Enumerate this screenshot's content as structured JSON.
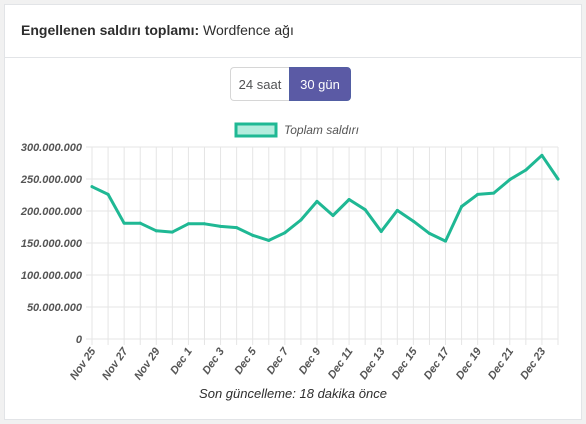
{
  "header": {
    "title_bold": "Engellenen saldırı toplamı:",
    "title_rest": "Wordfence ağı"
  },
  "toggle": {
    "option_24h": "24 saat",
    "option_30d": "30 gün",
    "selected": "30 gün"
  },
  "footer": {
    "last_updated": "Son güncelleme: 18 dakika önce"
  },
  "colors": {
    "line": "#1fb894",
    "legend_fill": "#b3ecdd",
    "accent_button": "#5b5aa5",
    "grid": "#e5e5e5"
  },
  "chart_data": {
    "type": "line",
    "x": [
      "Nov 25",
      "Nov 26",
      "Nov 27",
      "Nov 28",
      "Nov 29",
      "Nov 30",
      "Dec 1",
      "Dec 2",
      "Dec 3",
      "Dec 4",
      "Dec 5",
      "Dec 6",
      "Dec 7",
      "Dec 8",
      "Dec 9",
      "Dec 10",
      "Dec 11",
      "Dec 12",
      "Dec 13",
      "Dec 14",
      "Dec 15",
      "Dec 16",
      "Dec 17",
      "Dec 18",
      "Dec 19",
      "Dec 20",
      "Dec 21",
      "Dec 22",
      "Dec 23",
      "Dec 24"
    ],
    "x_tick_labels": [
      "Nov 25",
      "Nov 27",
      "Nov 29",
      "Dec 1",
      "Dec 3",
      "Dec 5",
      "Dec 7",
      "Dec 9",
      "Dec 11",
      "Dec 13",
      "Dec 15",
      "Dec 17",
      "Dec 19",
      "Dec 21",
      "Dec 23"
    ],
    "series": [
      {
        "name": "Toplam saldırı",
        "values": [
          238000000,
          226000000,
          181000000,
          181000000,
          169000000,
          167000000,
          180000000,
          180000000,
          176000000,
          174000000,
          162000000,
          154000000,
          166000000,
          186000000,
          215000000,
          193000000,
          218000000,
          202000000,
          168000000,
          201000000,
          184000000,
          165000000,
          153000000,
          207000000,
          226000000,
          228000000,
          249000000,
          264000000,
          287000000,
          250000000
        ]
      }
    ],
    "y_ticks": [
      "0",
      "50.000.000",
      "100.000.000",
      "150.000.000",
      "200.000.000",
      "250.000.000",
      "300.000.000"
    ],
    "ylim": [
      0,
      300000000
    ],
    "grid": true,
    "legend_position": "top-center"
  }
}
